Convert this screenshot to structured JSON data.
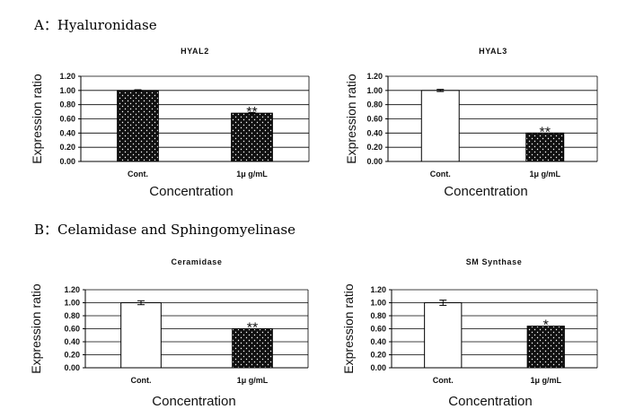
{
  "sections": {
    "a": "A：Hyaluronidase",
    "b": "B：Celamidase and Sphingomyelinase"
  },
  "colors": {
    "bar_dark": "#111111",
    "bar_light": "#ffffff",
    "axis": "#000000"
  },
  "chart_data": [
    {
      "type": "bar",
      "title": "HYAL2",
      "xlabel": "Concentration",
      "ylabel": "Expression ratio",
      "categories": [
        "Cont.",
        "1μ g/mL"
      ],
      "values": [
        1.0,
        0.68
      ],
      "errors": [
        0.01,
        0.01
      ],
      "bar_fill": [
        "dark",
        "dark"
      ],
      "significance": [
        "",
        "**"
      ],
      "ylim": [
        0,
        1.2
      ],
      "yticks": [
        "0.00",
        "0.20",
        "0.40",
        "0.60",
        "0.80",
        "1.00",
        "1.20"
      ],
      "grid": true
    },
    {
      "type": "bar",
      "title": "HYAL3",
      "xlabel": "Concentration",
      "ylabel": "Expression ratio",
      "categories": [
        "Cont.",
        "1μ g/mL"
      ],
      "values": [
        1.0,
        0.4
      ],
      "errors": [
        0.015,
        0.0
      ],
      "bar_fill": [
        "light",
        "dark"
      ],
      "significance": [
        "",
        "**"
      ],
      "ylim": [
        0,
        1.2
      ],
      "yticks": [
        "0.00",
        "0.20",
        "0.40",
        "0.60",
        "0.80",
        "1.00",
        "1.20"
      ],
      "grid": true
    },
    {
      "type": "bar",
      "title": "Ceramidase",
      "xlabel": "Concentration",
      "ylabel": "Expression ratio",
      "categories": [
        "Cont.",
        "1μ g/mL"
      ],
      "values": [
        1.0,
        0.6
      ],
      "errors": [
        0.03,
        0.0
      ],
      "bar_fill": [
        "light",
        "dark"
      ],
      "significance": [
        "",
        "**"
      ],
      "ylim": [
        0,
        1.2
      ],
      "yticks": [
        "0.00",
        "0.20",
        "0.40",
        "0.60",
        "0.80",
        "1.00",
        "1.20"
      ],
      "grid": true
    },
    {
      "type": "bar",
      "title": "SM Synthase",
      "xlabel": "Concentration",
      "ylabel": "Expression ratio",
      "categories": [
        "Cont.",
        "1μ g/mL"
      ],
      "values": [
        1.0,
        0.64
      ],
      "errors": [
        0.04,
        0.0
      ],
      "bar_fill": [
        "light",
        "dark"
      ],
      "significance": [
        "",
        "*"
      ],
      "ylim": [
        0,
        1.2
      ],
      "yticks": [
        "0.00",
        "0.20",
        "0.40",
        "0.60",
        "0.80",
        "1.00",
        "1.20"
      ],
      "grid": true
    }
  ]
}
